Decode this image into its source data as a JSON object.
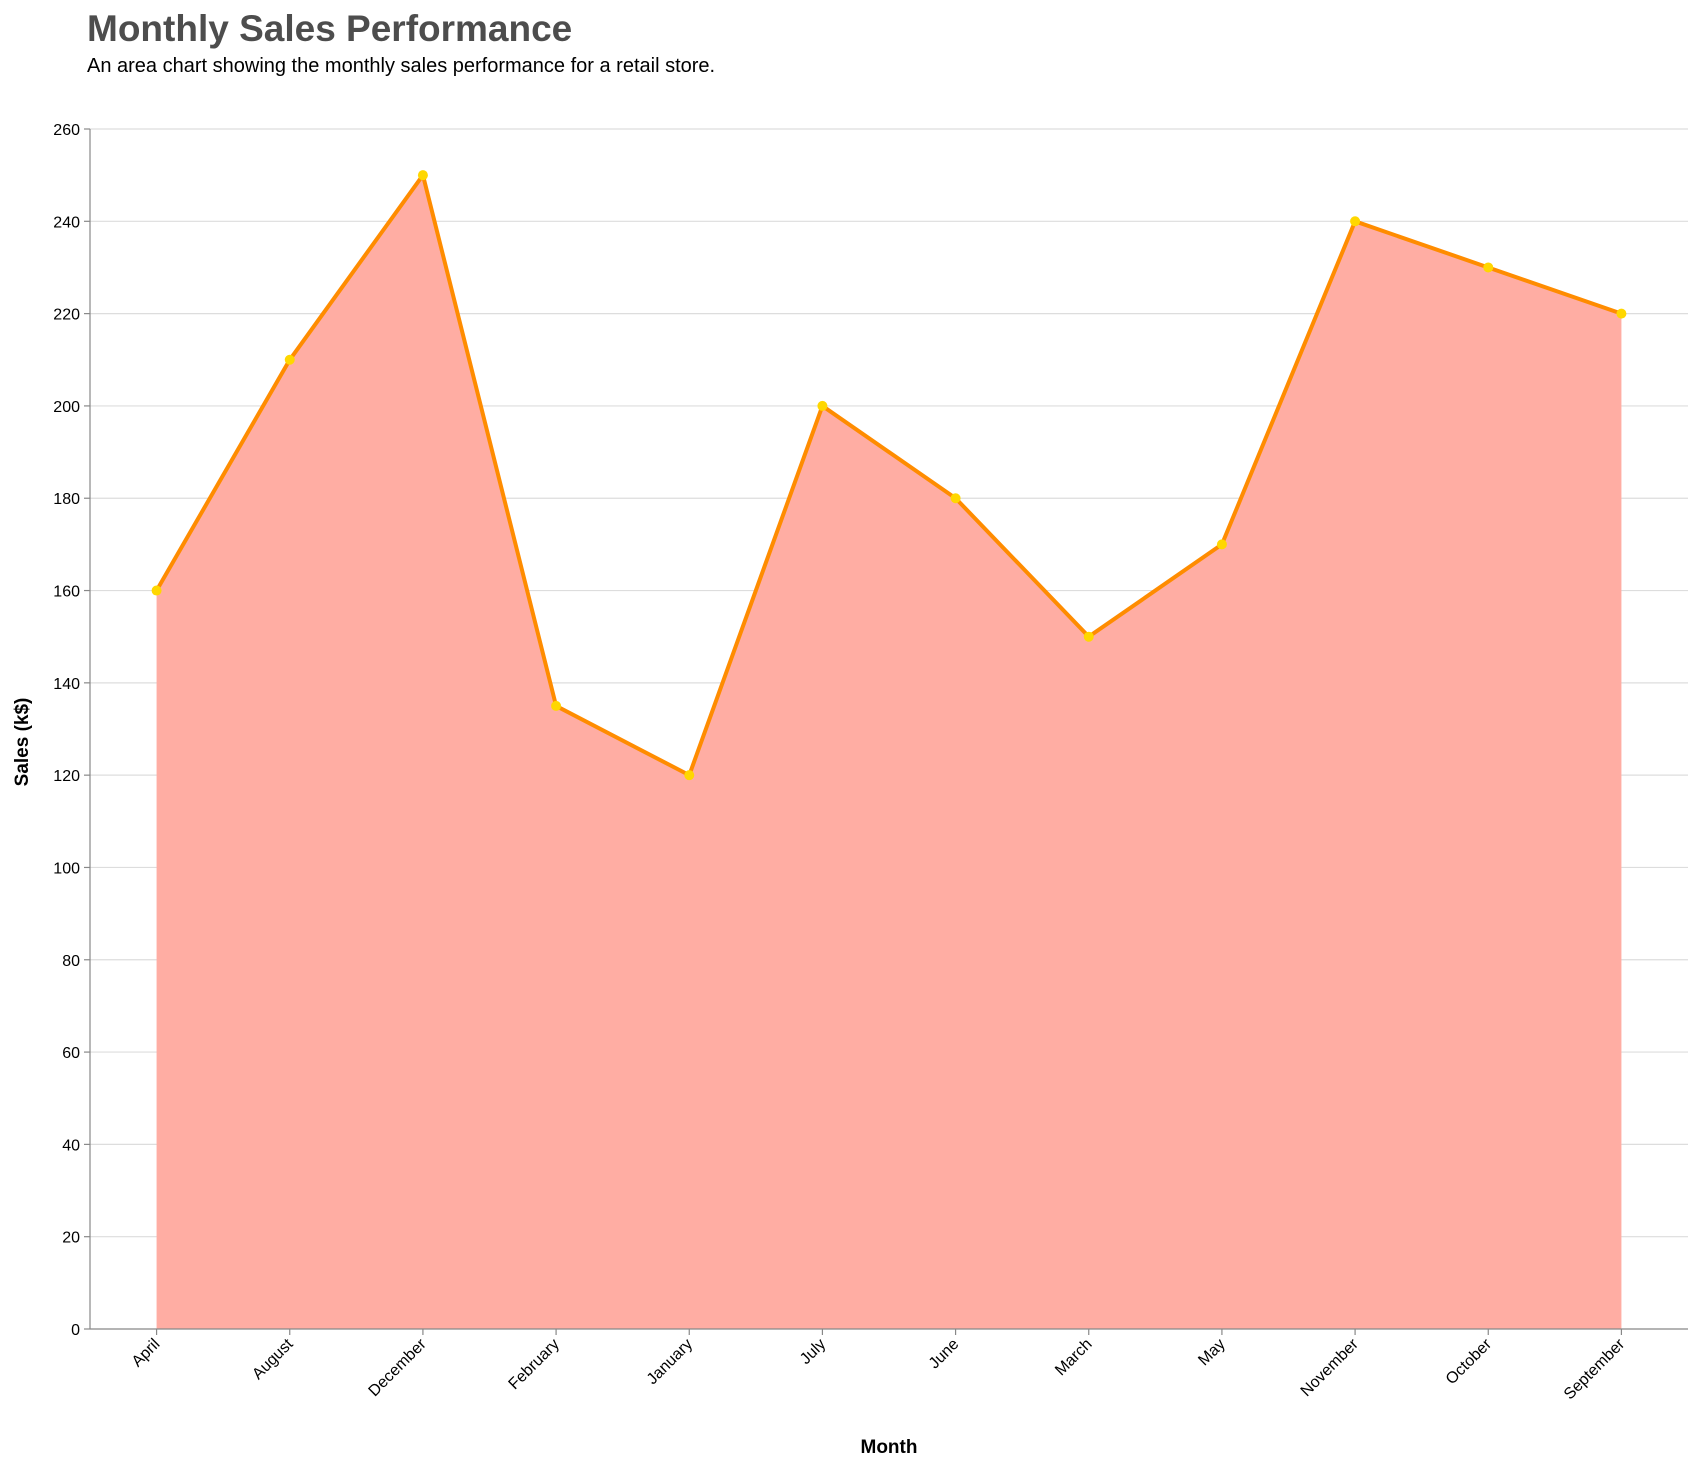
{
  "chart_data": {
    "type": "area",
    "title": "Monthly Sales Performance",
    "subtitle": "An area chart showing the monthly sales performance for a retail store.",
    "xlabel": "Month",
    "ylabel": "Sales (k$)",
    "categories": [
      "April",
      "August",
      "December",
      "February",
      "January",
      "July",
      "June",
      "March",
      "May",
      "November",
      "October",
      "September"
    ],
    "values": [
      160,
      210,
      250,
      135,
      120,
      200,
      180,
      150,
      170,
      240,
      230,
      220
    ],
    "ylim": [
      0,
      260
    ],
    "yticks": [
      0,
      20,
      40,
      60,
      80,
      100,
      120,
      140,
      160,
      180,
      200,
      220,
      240,
      260
    ],
    "grid": true,
    "legend": "none",
    "colors": {
      "area_fill": "#ffada3",
      "line": "#ff8c00",
      "point": "#ffd700"
    }
  }
}
